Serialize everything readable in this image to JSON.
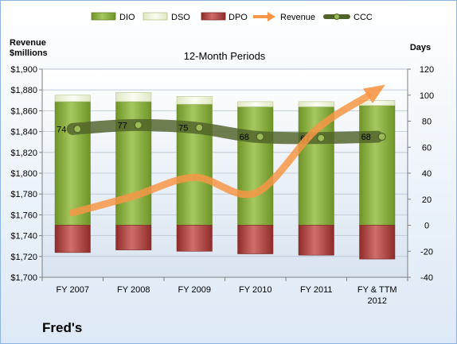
{
  "company": "Fred's",
  "chart_data": {
    "type": "bar",
    "title": "12-Month Periods",
    "categories": [
      [
        "FY 2007"
      ],
      [
        "FY 2008"
      ],
      [
        "FY 2009"
      ],
      [
        "FY 2010"
      ],
      [
        "FY 2011"
      ],
      [
        "FY & TTM",
        "2012"
      ]
    ],
    "left_axis": {
      "title": [
        "Revenue",
        "$millions"
      ],
      "min": 1700,
      "max": 1900,
      "step": 20,
      "tick_labels": [
        "$1,700",
        "$1,720",
        "$1,740",
        "$1,760",
        "$1,780",
        "$1,800",
        "$1,820",
        "$1,840",
        "$1,860",
        "$1,880",
        "$1,900"
      ]
    },
    "right_axis": {
      "title": "Days",
      "min": -40,
      "max": 120,
      "step": 20,
      "tick_labels": [
        "-40",
        "-20",
        "0",
        "20",
        "40",
        "60",
        "80",
        "100",
        "120"
      ]
    },
    "legend_position": "top",
    "series": [
      {
        "name": "DIO",
        "kind": "stacked-bar",
        "axis": "right",
        "color": "#8fb24a",
        "values": [
          95,
          95,
          93,
          91,
          91,
          92
        ]
      },
      {
        "name": "DSO",
        "kind": "stacked-bar",
        "axis": "right",
        "color": "#eef3d8",
        "values": [
          5,
          7,
          6,
          4,
          4,
          4
        ]
      },
      {
        "name": "DPO",
        "kind": "stacked-bar-negative",
        "axis": "right",
        "color": "#c0504d",
        "values": [
          -21,
          -19,
          -20,
          -22,
          -23,
          -26
        ]
      },
      {
        "name": "Revenue",
        "kind": "line-arrow",
        "axis": "left",
        "color": "#f79646",
        "values": [
          1762,
          1778,
          1796,
          1781,
          1842,
          1880
        ]
      },
      {
        "name": "CCC",
        "kind": "line-markers",
        "axis": "right",
        "color": "#4f6228",
        "values": [
          74,
          77,
          75,
          68,
          67,
          68
        ],
        "labels": [
          "74",
          "77",
          "75",
          "68",
          "67",
          "68"
        ]
      }
    ]
  }
}
